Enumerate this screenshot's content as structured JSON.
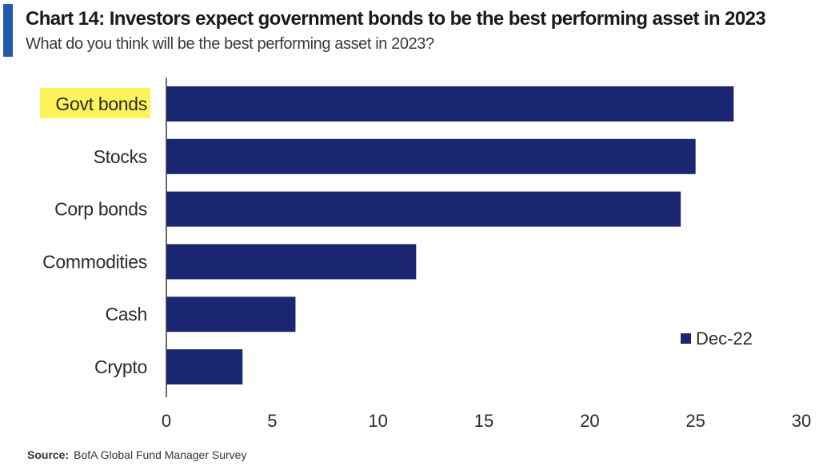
{
  "header": {
    "title": "Chart 14: Investors expect government bonds to be the best performing asset in 2023",
    "subtitle": "What do you think will be the best performing asset in 2023?"
  },
  "footer": {
    "source_label": "Source:",
    "source_text": "BofA Global Fund Manager Survey"
  },
  "colors": {
    "bar": "#1b2672",
    "highlight": "#fdf35b",
    "accent": "#1f5ba8"
  },
  "chart_data": {
    "type": "bar",
    "orientation": "horizontal",
    "categories": [
      "Govt bonds",
      "Stocks",
      "Corp bonds",
      "Commodities",
      "Cash",
      "Crypto"
    ],
    "series": [
      {
        "name": "Dec-22",
        "values": [
          26.8,
          25.0,
          24.3,
          11.8,
          6.1,
          3.6
        ]
      }
    ],
    "highlighted_category": "Govt bonds",
    "xlim": [
      0,
      30
    ],
    "xticks": [
      0,
      5,
      10,
      15,
      20,
      25,
      30
    ],
    "legend_position": "bottom-right",
    "grid": false
  }
}
